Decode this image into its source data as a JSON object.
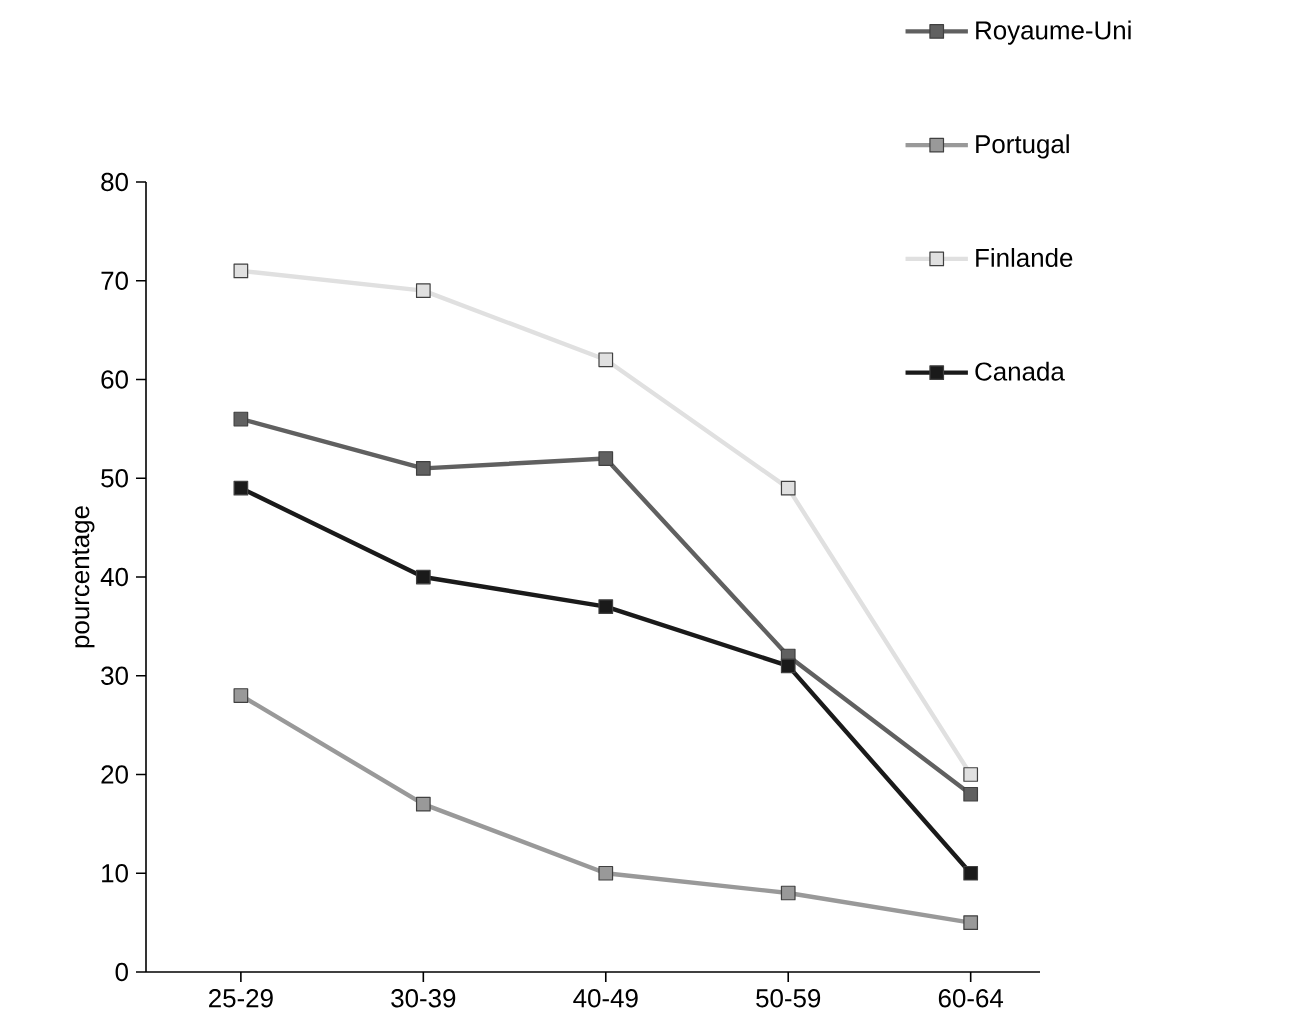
{
  "chart_data": {
    "type": "line",
    "ylabel": "pourcentage",
    "categories": [
      "25-29",
      "30-39",
      "40-49",
      "50-59",
      "60-64"
    ],
    "series": [
      {
        "name": "Royaume-Uni",
        "color": "#606060",
        "values": [
          56,
          51,
          52,
          32,
          18
        ]
      },
      {
        "name": "Portugal",
        "color": "#999999",
        "values": [
          28,
          17,
          10,
          8,
          5
        ]
      },
      {
        "name": "Finlande",
        "color": "#e0e0e0",
        "values": [
          71,
          69,
          62,
          49,
          20
        ]
      },
      {
        "name": "Canada",
        "color": "#1a1a1a",
        "values": [
          49,
          40,
          37,
          31,
          10
        ]
      }
    ],
    "ylim": [
      0,
      80
    ],
    "yticks": [
      0,
      10,
      20,
      30,
      40,
      50,
      60,
      70,
      80
    ],
    "grid": false,
    "legend": "top right",
    "marker": "square",
    "line_style": "solid"
  }
}
